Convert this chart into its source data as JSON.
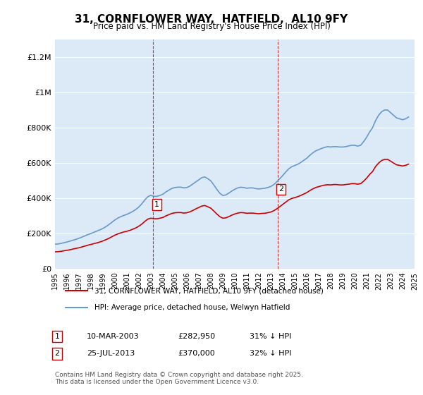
{
  "title": "31, CORNFLOWER WAY,  HATFIELD,  AL10 9FY",
  "subtitle": "Price paid vs. HM Land Registry's House Price Index (HPI)",
  "ylabel_ticks": [
    "£0",
    "£200K",
    "£400K",
    "£600K",
    "£800K",
    "£1M",
    "£1.2M"
  ],
  "ylim": [
    0,
    1300000
  ],
  "yticks": [
    0,
    200000,
    400000,
    600000,
    800000,
    1000000,
    1200000
  ],
  "background_color": "#ffffff",
  "plot_bg_color": "#dce9f7",
  "grid_color": "#ffffff",
  "red_color": "#cc0000",
  "blue_color": "#6699cc",
  "sale1_date": 2003.19,
  "sale1_price": 282950,
  "sale2_date": 2013.56,
  "sale2_price": 370000,
  "legend_label_red": "31, CORNFLOWER WAY, HATFIELD, AL10 9FY (detached house)",
  "legend_label_blue": "HPI: Average price, detached house, Welwyn Hatfield",
  "annotation1_label": "1",
  "annotation2_label": "2",
  "table_row1": [
    "1",
    "10-MAR-2003",
    "£282,950",
    "31% ↓ HPI"
  ],
  "table_row2": [
    "2",
    "25-JUL-2013",
    "£370,000",
    "32% ↓ HPI"
  ],
  "footer": "Contains HM Land Registry data © Crown copyright and database right 2025.\nThis data is licensed under the Open Government Licence v3.0.",
  "hpi_data": {
    "years": [
      1995.0,
      1995.25,
      1995.5,
      1995.75,
      1996.0,
      1996.25,
      1996.5,
      1996.75,
      1997.0,
      1997.25,
      1997.5,
      1997.75,
      1998.0,
      1998.25,
      1998.5,
      1998.75,
      1999.0,
      1999.25,
      1999.5,
      1999.75,
      2000.0,
      2000.25,
      2000.5,
      2000.75,
      2001.0,
      2001.25,
      2001.5,
      2001.75,
      2002.0,
      2002.25,
      2002.5,
      2002.75,
      2003.0,
      2003.25,
      2003.5,
      2003.75,
      2004.0,
      2004.25,
      2004.5,
      2004.75,
      2005.0,
      2005.25,
      2005.5,
      2005.75,
      2006.0,
      2006.25,
      2006.5,
      2006.75,
      2007.0,
      2007.25,
      2007.5,
      2007.75,
      2008.0,
      2008.25,
      2008.5,
      2008.75,
      2009.0,
      2009.25,
      2009.5,
      2009.75,
      2010.0,
      2010.25,
      2010.5,
      2010.75,
      2011.0,
      2011.25,
      2011.5,
      2011.75,
      2012.0,
      2012.25,
      2012.5,
      2012.75,
      2013.0,
      2013.25,
      2013.5,
      2013.75,
      2014.0,
      2014.25,
      2014.5,
      2014.75,
      2015.0,
      2015.25,
      2015.5,
      2015.75,
      2016.0,
      2016.25,
      2016.5,
      2016.75,
      2017.0,
      2017.25,
      2017.5,
      2017.75,
      2018.0,
      2018.25,
      2018.5,
      2018.75,
      2019.0,
      2019.25,
      2019.5,
      2019.75,
      2020.0,
      2020.25,
      2020.5,
      2020.75,
      2021.0,
      2021.25,
      2021.5,
      2021.75,
      2022.0,
      2022.25,
      2022.5,
      2022.75,
      2023.0,
      2023.25,
      2023.5,
      2023.75,
      2024.0,
      2024.25,
      2024.5
    ],
    "values": [
      138000,
      140000,
      143000,
      147000,
      151000,
      156000,
      161000,
      166000,
      172000,
      179000,
      186000,
      193000,
      199000,
      206000,
      213000,
      220000,
      228000,
      238000,
      250000,
      263000,
      276000,
      287000,
      295000,
      302000,
      308000,
      316000,
      325000,
      336000,
      350000,
      368000,
      390000,
      408000,
      416000,
      410000,
      410000,
      415000,
      422000,
      435000,
      445000,
      455000,
      460000,
      462000,
      462000,
      458000,
      460000,
      468000,
      480000,
      492000,
      504000,
      516000,
      520000,
      510000,
      498000,
      475000,
      450000,
      428000,
      415000,
      418000,
      428000,
      440000,
      450000,
      458000,
      462000,
      460000,
      456000,
      458000,
      458000,
      454000,
      452000,
      454000,
      456000,
      460000,
      466000,
      476000,
      492000,
      510000,
      528000,
      548000,
      566000,
      578000,
      585000,
      592000,
      602000,
      614000,
      626000,
      642000,
      656000,
      668000,
      675000,
      682000,
      688000,
      692000,
      690000,
      692000,
      692000,
      690000,
      690000,
      692000,
      696000,
      700000,
      700000,
      695000,
      700000,
      720000,
      745000,
      775000,
      800000,
      840000,
      870000,
      890000,
      900000,
      900000,
      885000,
      870000,
      855000,
      850000,
      845000,
      850000,
      860000
    ]
  },
  "red_data": {
    "years": [
      1995.0,
      1995.25,
      1995.5,
      1995.75,
      1996.0,
      1996.25,
      1996.5,
      1996.75,
      1997.0,
      1997.25,
      1997.5,
      1997.75,
      1998.0,
      1998.25,
      1998.5,
      1998.75,
      1999.0,
      1999.25,
      1999.5,
      1999.75,
      2000.0,
      2000.25,
      2000.5,
      2000.75,
      2001.0,
      2001.25,
      2001.5,
      2001.75,
      2002.0,
      2002.25,
      2002.5,
      2002.75,
      2003.0,
      2003.25,
      2003.5,
      2003.75,
      2004.0,
      2004.25,
      2004.5,
      2004.75,
      2005.0,
      2005.25,
      2005.5,
      2005.75,
      2006.0,
      2006.25,
      2006.5,
      2006.75,
      2007.0,
      2007.25,
      2007.5,
      2007.75,
      2008.0,
      2008.25,
      2008.5,
      2008.75,
      2009.0,
      2009.25,
      2009.5,
      2009.75,
      2010.0,
      2010.25,
      2010.5,
      2010.75,
      2011.0,
      2011.25,
      2011.5,
      2011.75,
      2012.0,
      2012.25,
      2012.5,
      2012.75,
      2013.0,
      2013.25,
      2013.5,
      2013.75,
      2014.0,
      2014.25,
      2014.5,
      2014.75,
      2015.0,
      2015.25,
      2015.5,
      2015.75,
      2016.0,
      2016.25,
      2016.5,
      2016.75,
      2017.0,
      2017.25,
      2017.5,
      2017.75,
      2018.0,
      2018.25,
      2018.5,
      2018.75,
      2019.0,
      2019.25,
      2019.5,
      2019.75,
      2020.0,
      2020.25,
      2020.5,
      2020.75,
      2021.0,
      2021.25,
      2021.5,
      2021.75,
      2022.0,
      2022.25,
      2022.5,
      2022.75,
      2023.0,
      2023.25,
      2023.5,
      2023.75,
      2024.0,
      2024.25,
      2024.5
    ],
    "values": [
      95000,
      96000,
      98000,
      101000,
      104000,
      107000,
      111000,
      115000,
      118000,
      123000,
      128000,
      133000,
      137000,
      142000,
      146000,
      151000,
      157000,
      164000,
      172000,
      181000,
      190000,
      197000,
      203000,
      208000,
      212000,
      217000,
      224000,
      231000,
      241000,
      253000,
      268000,
      281000,
      286000,
      282950,
      283000,
      286000,
      290000,
      299000,
      306000,
      313000,
      317000,
      318000,
      318000,
      315000,
      317000,
      322000,
      330000,
      339000,
      347000,
      355000,
      358000,
      351000,
      343000,
      327000,
      310000,
      295000,
      286000,
      288000,
      295000,
      303000,
      310000,
      315000,
      318000,
      317000,
      314000,
      315000,
      315000,
      313000,
      311000,
      313000,
      314000,
      317000,
      321000,
      328000,
      339000,
      351000,
      364000,
      377000,
      390000,
      398000,
      403000,
      408000,
      415000,
      423000,
      431000,
      442000,
      452000,
      460000,
      465000,
      470000,
      474000,
      476000,
      475000,
      477000,
      477000,
      475000,
      475000,
      477000,
      479000,
      482000,
      482000,
      479000,
      482000,
      496000,
      513000,
      534000,
      551000,
      579000,
      599000,
      613000,
      620000,
      620000,
      610000,
      599000,
      589000,
      586000,
      582000,
      586000,
      593000
    ]
  },
  "xmin": 1995.0,
  "xmax": 2025.0,
  "xticks": [
    1995,
    1996,
    1997,
    1998,
    1999,
    2000,
    2001,
    2002,
    2003,
    2004,
    2005,
    2006,
    2007,
    2008,
    2009,
    2010,
    2011,
    2012,
    2013,
    2014,
    2015,
    2016,
    2017,
    2018,
    2019,
    2020,
    2021,
    2022,
    2023,
    2024,
    2025
  ]
}
